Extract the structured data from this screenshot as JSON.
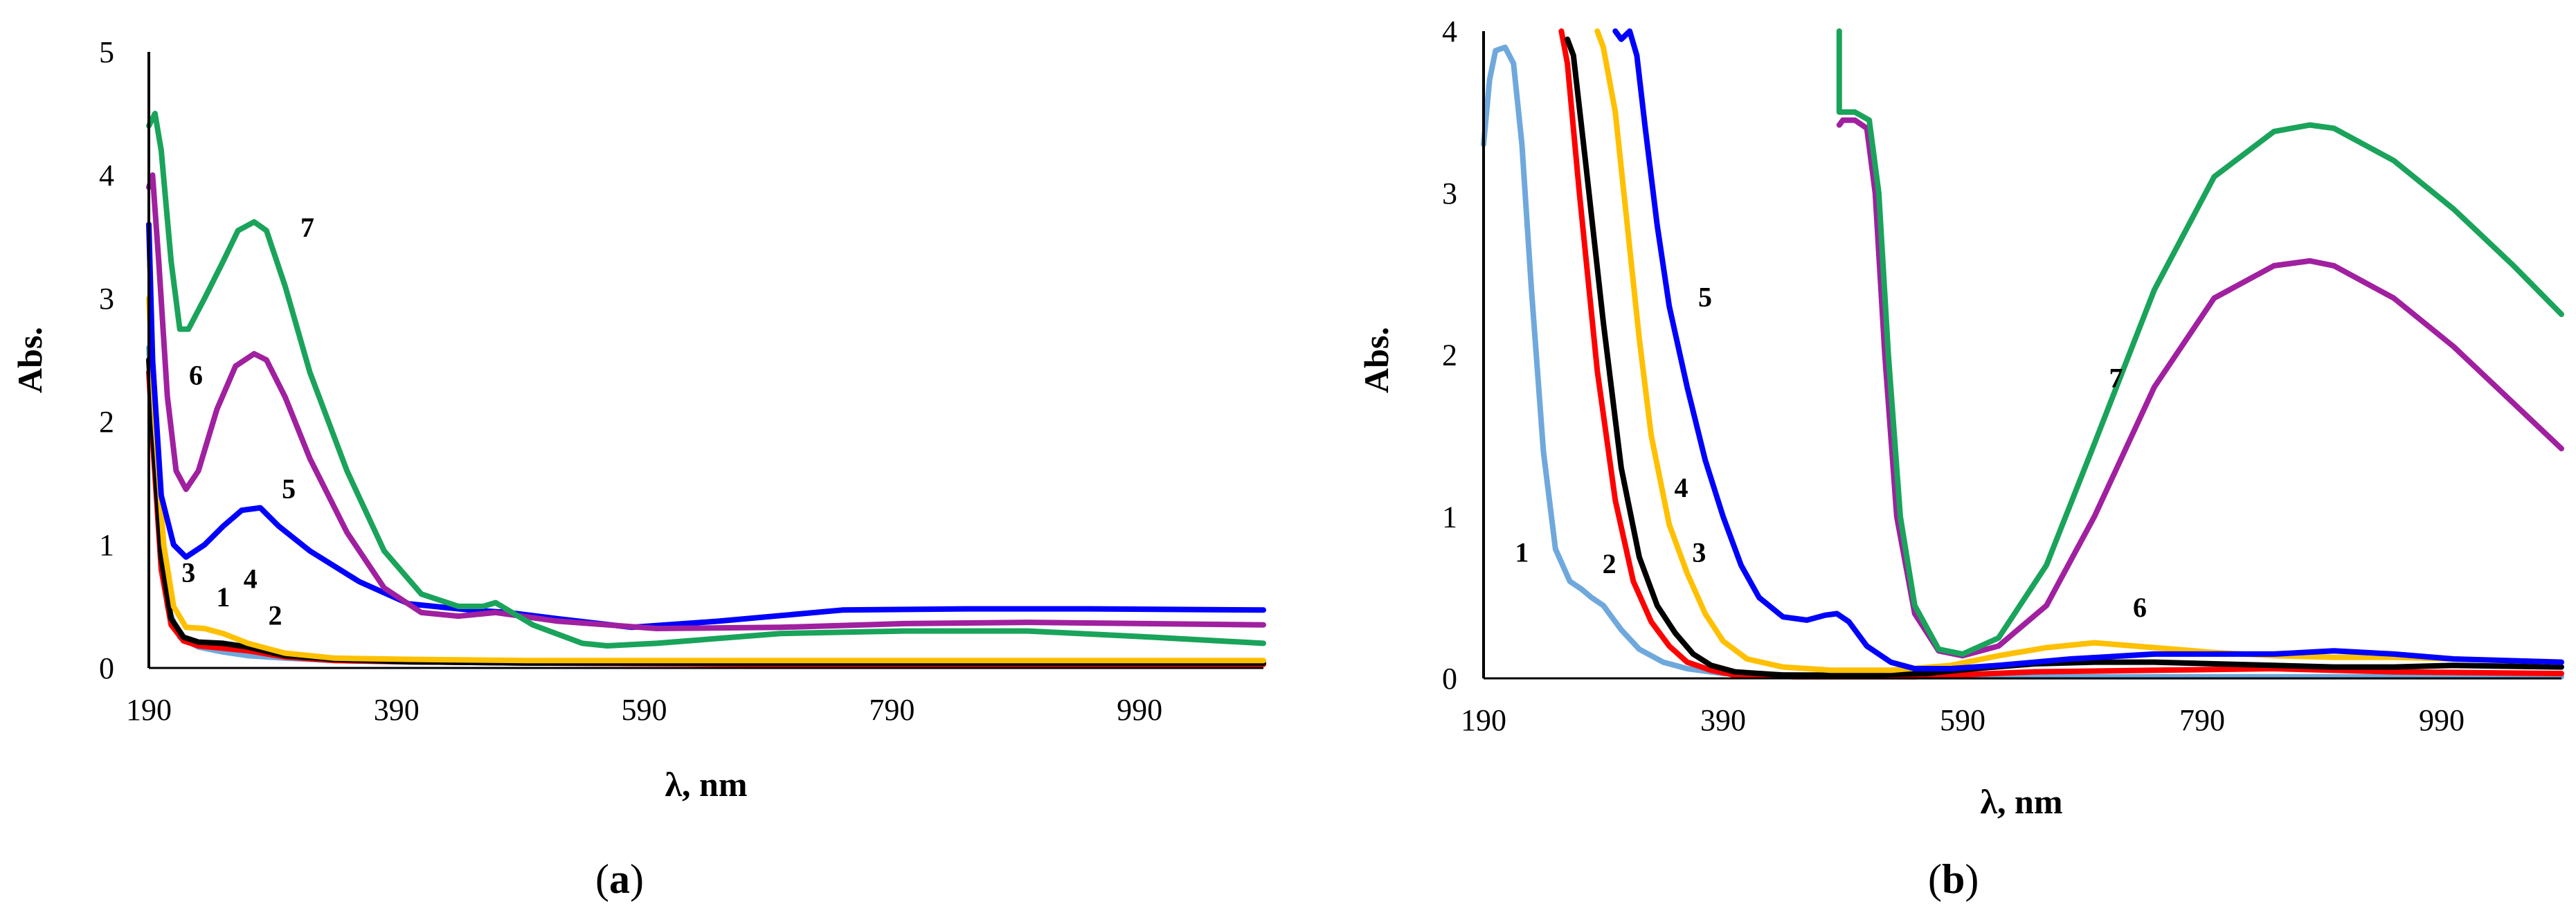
{
  "chart_data": [
    {
      "panel": "a",
      "panel_label": "(a)",
      "panel_letter": "a",
      "type": "line",
      "xlabel": "λ, nm",
      "ylabel": "Abs.",
      "xlim": [
        190,
        1090
      ],
      "ylim": [
        0,
        5
      ],
      "xticks": [
        190,
        390,
        590,
        790,
        990
      ],
      "yticks": [
        0,
        1,
        2,
        3,
        4,
        5
      ],
      "series": [
        {
          "name": "1",
          "color": "#6fa8dc",
          "x": [
            190,
            193,
            198,
            205,
            215,
            230,
            250,
            270,
            300,
            340,
            400,
            500,
            700,
            900,
            1090
          ],
          "y": [
            2.6,
            2.0,
            1.2,
            0.5,
            0.25,
            0.17,
            0.13,
            0.1,
            0.08,
            0.06,
            0.05,
            0.04,
            0.03,
            0.03,
            0.03
          ]
        },
        {
          "name": "2",
          "color": "#ff0000",
          "x": [
            190,
            194,
            200,
            208,
            218,
            230,
            250,
            270,
            300,
            340,
            400,
            500,
            700,
            900,
            1090
          ],
          "y": [
            2.4,
            1.7,
            0.8,
            0.35,
            0.22,
            0.18,
            0.16,
            0.14,
            0.09,
            0.06,
            0.05,
            0.04,
            0.03,
            0.03,
            0.03
          ]
        },
        {
          "name": "3",
          "color": "#000000",
          "x": [
            190,
            194,
            200,
            208,
            218,
            230,
            250,
            270,
            300,
            340,
            400,
            500,
            700,
            900,
            1090
          ],
          "y": [
            2.5,
            1.8,
            0.9,
            0.4,
            0.25,
            0.21,
            0.2,
            0.17,
            0.1,
            0.07,
            0.05,
            0.04,
            0.04,
            0.04,
            0.04
          ]
        },
        {
          "name": "4",
          "color": "#ffc000",
          "x": [
            190,
            195,
            202,
            210,
            220,
            235,
            250,
            270,
            300,
            340,
            400,
            500,
            700,
            900,
            1090
          ],
          "y": [
            3.0,
            2.0,
            1.0,
            0.5,
            0.33,
            0.32,
            0.28,
            0.2,
            0.12,
            0.08,
            0.07,
            0.06,
            0.06,
            0.06,
            0.06
          ]
        },
        {
          "name": "5",
          "color": "#0000ff",
          "x": [
            190,
            193,
            200,
            210,
            220,
            235,
            250,
            265,
            280,
            295,
            320,
            360,
            400,
            450,
            480,
            520,
            580,
            650,
            750,
            850,
            950,
            1090
          ],
          "y": [
            3.6,
            2.5,
            1.4,
            1.0,
            0.9,
            1.0,
            1.15,
            1.28,
            1.3,
            1.15,
            0.95,
            0.7,
            0.52,
            0.47,
            0.45,
            0.4,
            0.33,
            0.38,
            0.47,
            0.48,
            0.48,
            0.47
          ]
        },
        {
          "name": "6",
          "color": "#a020a0",
          "x": [
            190,
            193,
            198,
            205,
            212,
            220,
            230,
            245,
            260,
            275,
            285,
            300,
            320,
            350,
            380,
            410,
            440,
            470,
            520,
            600,
            700,
            800,
            900,
            1090
          ],
          "y": [
            3.9,
            4.0,
            3.3,
            2.2,
            1.6,
            1.45,
            1.6,
            2.1,
            2.45,
            2.55,
            2.5,
            2.2,
            1.7,
            1.1,
            0.65,
            0.45,
            0.42,
            0.45,
            0.38,
            0.32,
            0.33,
            0.36,
            0.37,
            0.35
          ]
        },
        {
          "name": "7",
          "color": "#1aa35a",
          "x": [
            190,
            195,
            200,
            208,
            215,
            222,
            235,
            250,
            262,
            275,
            285,
            300,
            320,
            350,
            380,
            410,
            440,
            460,
            470,
            500,
            540,
            560,
            600,
            700,
            800,
            900,
            1000,
            1090
          ],
          "y": [
            4.4,
            4.5,
            4.2,
            3.3,
            2.75,
            2.75,
            3.0,
            3.3,
            3.55,
            3.62,
            3.55,
            3.1,
            2.4,
            1.6,
            0.95,
            0.6,
            0.5,
            0.5,
            0.53,
            0.35,
            0.2,
            0.18,
            0.2,
            0.28,
            0.3,
            0.3,
            0.25,
            0.2
          ]
        }
      ],
      "curve_labels": [
        {
          "text": "1",
          "x": 250,
          "y": 0.5
        },
        {
          "text": "2",
          "x": 292,
          "y": 0.35
        },
        {
          "text": "3",
          "x": 222,
          "y": 0.7
        },
        {
          "text": "4",
          "x": 272,
          "y": 0.65
        },
        {
          "text": "5",
          "x": 303,
          "y": 1.38
        },
        {
          "text": "6",
          "x": 228,
          "y": 2.3
        },
        {
          "text": "7",
          "x": 318,
          "y": 3.5
        }
      ]
    },
    {
      "panel": "b",
      "panel_label": "(b)",
      "panel_letter": "b",
      "type": "line",
      "xlabel": "λ, nm",
      "ylabel": "Abs.",
      "xlim": [
        190,
        1090
      ],
      "ylim": [
        0,
        4
      ],
      "xticks": [
        190,
        390,
        590,
        790,
        990
      ],
      "yticks": [
        0,
        1,
        2,
        3,
        4
      ],
      "series": [
        {
          "name": "1",
          "color": "#6fa8dc",
          "x": [
            190,
            195,
            200,
            208,
            215,
            222,
            230,
            240,
            250,
            262,
            272,
            280,
            290,
            305,
            320,
            340,
            360,
            390,
            450,
            550,
            700,
            900,
            1090
          ],
          "y": [
            3.3,
            3.7,
            3.88,
            3.9,
            3.8,
            3.3,
            2.4,
            1.4,
            0.8,
            0.6,
            0.55,
            0.5,
            0.45,
            0.3,
            0.18,
            0.1,
            0.06,
            0.03,
            0.02,
            0.01,
            0.01,
            0.01,
            0.01
          ]
        },
        {
          "name": "2",
          "color": "#ff0000",
          "x": [
            255,
            260,
            270,
            285,
            300,
            315,
            330,
            345,
            360,
            380,
            400,
            450,
            550,
            650,
            750,
            850,
            950,
            1090
          ],
          "y": [
            4.0,
            3.8,
            3.0,
            1.9,
            1.1,
            0.6,
            0.35,
            0.2,
            0.1,
            0.05,
            0.02,
            0.01,
            0.01,
            0.04,
            0.05,
            0.06,
            0.04,
            0.03
          ]
        },
        {
          "name": "3",
          "color": "#000000",
          "x": [
            260,
            265,
            275,
            290,
            305,
            320,
            335,
            350,
            365,
            380,
            400,
            440,
            500,
            560,
            600,
            650,
            700,
            750,
            800,
            850,
            900,
            950,
            1000,
            1090
          ],
          "y": [
            3.95,
            3.85,
            3.2,
            2.2,
            1.3,
            0.75,
            0.45,
            0.28,
            0.15,
            0.08,
            0.04,
            0.02,
            0.02,
            0.03,
            0.06,
            0.09,
            0.1,
            0.1,
            0.09,
            0.08,
            0.07,
            0.07,
            0.08,
            0.07
          ]
        },
        {
          "name": "4",
          "color": "#ffc000",
          "x": [
            285,
            290,
            300,
            310,
            320,
            330,
            345,
            360,
            375,
            390,
            410,
            440,
            480,
            530,
            580,
            620,
            660,
            700,
            750,
            800,
            850,
            900,
            950,
            1000,
            1090
          ],
          "y": [
            4.0,
            3.9,
            3.5,
            2.8,
            2.1,
            1.5,
            0.95,
            0.65,
            0.4,
            0.23,
            0.12,
            0.07,
            0.05,
            0.05,
            0.08,
            0.14,
            0.19,
            0.22,
            0.19,
            0.16,
            0.14,
            0.13,
            0.13,
            0.12,
            0.1
          ]
        },
        {
          "name": "5",
          "color": "#0000ff",
          "x": [
            300,
            305,
            312,
            318,
            325,
            335,
            345,
            360,
            375,
            390,
            405,
            420,
            440,
            460,
            475,
            485,
            495,
            510,
            530,
            550,
            580,
            620,
            680,
            750,
            850,
            900,
            950,
            1000,
            1090
          ],
          "y": [
            4.0,
            3.95,
            4.0,
            3.85,
            3.4,
            2.8,
            2.3,
            1.8,
            1.35,
            1.0,
            0.7,
            0.5,
            0.38,
            0.36,
            0.39,
            0.4,
            0.35,
            0.2,
            0.1,
            0.06,
            0.06,
            0.08,
            0.12,
            0.15,
            0.15,
            0.17,
            0.15,
            0.12,
            0.1
          ]
        },
        {
          "name": "6",
          "color": "#a020a0",
          "x": [
            487,
            490,
            500,
            510,
            517,
            525,
            535,
            550,
            570,
            590,
            620,
            660,
            700,
            750,
            800,
            850,
            880,
            900,
            950,
            1000,
            1050,
            1090
          ],
          "y": [
            3.42,
            3.45,
            3.45,
            3.4,
            3.0,
            2.0,
            1.0,
            0.4,
            0.17,
            0.14,
            0.2,
            0.45,
            1.0,
            1.8,
            2.35,
            2.55,
            2.58,
            2.55,
            2.35,
            2.05,
            1.7,
            1.42
          ]
        },
        {
          "name": "7",
          "color": "#1aa35a",
          "x": [
            487,
            487,
            490,
            500,
            512,
            520,
            528,
            538,
            550,
            570,
            590,
            620,
            660,
            700,
            750,
            800,
            850,
            880,
            900,
            950,
            1000,
            1050,
            1090
          ],
          "y": [
            4.0,
            3.5,
            3.5,
            3.5,
            3.45,
            3.0,
            2.0,
            1.0,
            0.45,
            0.18,
            0.15,
            0.25,
            0.7,
            1.45,
            2.4,
            3.1,
            3.38,
            3.42,
            3.4,
            3.2,
            2.9,
            2.55,
            2.25
          ]
        }
      ],
      "curve_labels": [
        {
          "text": "1",
          "x": 222,
          "y": 0.72
        },
        {
          "text": "2",
          "x": 295,
          "y": 0.65
        },
        {
          "text": "3",
          "x": 370,
          "y": 0.72
        },
        {
          "text": "4",
          "x": 355,
          "y": 1.12
        },
        {
          "text": "5",
          "x": 375,
          "y": 2.3
        },
        {
          "text": "6",
          "x": 738,
          "y": 0.38
        },
        {
          "text": "7",
          "x": 718,
          "y": 1.8
        }
      ]
    }
  ]
}
